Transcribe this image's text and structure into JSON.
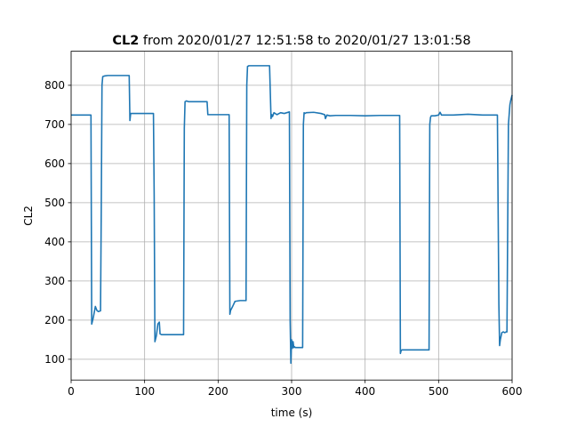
{
  "chart_data": {
    "type": "line",
    "title_bold": "CL2",
    "title_rest": " from 2020/01/27 12:51:58 to 2020/01/27 13:01:58",
    "xlabel": "time (s)",
    "ylabel": "CL2",
    "xlim": [
      0,
      600
    ],
    "ylim": [
      47,
      887
    ],
    "xticks": [
      0,
      100,
      200,
      300,
      400,
      500,
      600
    ],
    "yticks": [
      100,
      200,
      300,
      400,
      500,
      600,
      700,
      800
    ],
    "grid": true,
    "line_color": "#1f77b4",
    "series": [
      {
        "x": [
          0,
          27,
          28,
          30,
          33,
          35,
          37,
          40,
          41,
          42,
          43,
          44,
          46,
          50,
          79,
          80,
          81,
          82,
          84,
          87,
          90,
          112,
          113,
          114,
          116,
          118,
          120,
          121,
          123,
          130,
          153,
          154,
          155,
          157,
          160,
          170,
          185,
          186,
          190,
          215,
          216,
          217,
          219,
          221,
          223,
          230,
          238,
          239,
          240,
          242,
          260,
          270,
          272,
          273,
          274,
          276,
          280,
          285,
          290,
          297,
          298,
          299,
          300,
          301,
          302,
          303,
          304,
          305,
          310,
          315,
          316,
          317,
          318,
          320,
          330,
          340,
          345,
          346,
          348,
          352,
          360,
          380,
          400,
          420,
          447,
          448,
          449,
          450,
          460,
          480,
          487,
          488,
          489,
          490,
          495,
          500,
          502,
          504,
          520,
          540,
          560,
          570,
          575,
          580,
          582,
          583,
          584,
          586,
          588,
          590,
          592,
          593,
          595,
          597,
          598,
          600
        ],
        "y": [
          724,
          724,
          190,
          205,
          235,
          225,
          222,
          224,
          480,
          800,
          822,
          823,
          824,
          825,
          825,
          710,
          728,
          728,
          728,
          728,
          728,
          728,
          520,
          145,
          160,
          190,
          195,
          165,
          163,
          163,
          163,
          690,
          758,
          760,
          758,
          758,
          758,
          725,
          725,
          725,
          215,
          225,
          232,
          240,
          248,
          250,
          250,
          800,
          848,
          850,
          850,
          850,
          715,
          725,
          720,
          730,
          725,
          730,
          728,
          732,
          200,
          90,
          150,
          128,
          145,
          130,
          132,
          130,
          130,
          130,
          700,
          730,
          728,
          730,
          731,
          728,
          725,
          715,
          724,
          722,
          723,
          723,
          722,
          723,
          723,
          115,
          122,
          124,
          124,
          124,
          124,
          700,
          718,
          722,
          722,
          724,
          731,
          724,
          724,
          726,
          724,
          724,
          724,
          724,
          240,
          135,
          150,
          168,
          170,
          168,
          170,
          170,
          700,
          750,
          760,
          775
        ]
      }
    ]
  }
}
